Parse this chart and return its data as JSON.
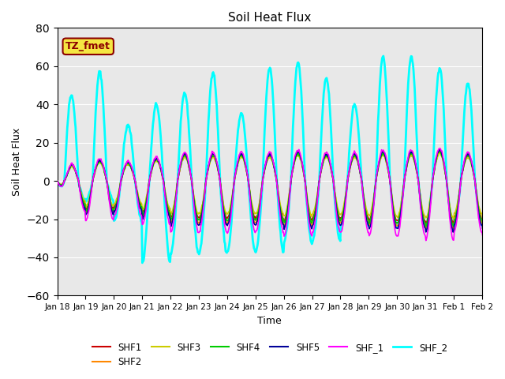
{
  "title": "Soil Heat Flux",
  "xlabel": "Time",
  "ylabel": "Soil Heat Flux",
  "ylim": [
    -60,
    80
  ],
  "bg_color": "#e8e8e8",
  "series": {
    "SHF1": {
      "color": "#cc0000",
      "lw": 1.2
    },
    "SHF2": {
      "color": "#ff8800",
      "lw": 1.2
    },
    "SHF3": {
      "color": "#cccc00",
      "lw": 1.2
    },
    "SHF4": {
      "color": "#00cc00",
      "lw": 1.2
    },
    "SHF5": {
      "color": "#000099",
      "lw": 1.2
    },
    "SHF_1": {
      "color": "#ff00ff",
      "lw": 1.2
    },
    "SHF_2": {
      "color": "#00ffff",
      "lw": 2.0
    }
  },
  "tz_label": "TZ_fmet",
  "tz_bg": "#f5e642",
  "tz_border": "#8b0000",
  "tick_labels": [
    "Jan 18",
    "Jan 19",
    "Jan 20",
    "Jan 21",
    "Jan 22",
    "Jan 23",
    "Jan 24",
    "Jan 25",
    "Jan 26",
    "Jan 27",
    "Jan 28",
    "Jan 29",
    "Jan 30",
    "Jan 31",
    "Feb 1",
    "Feb 2"
  ],
  "n_days": 16,
  "yticks": [
    -60,
    -40,
    -20,
    0,
    20,
    40,
    60,
    80
  ]
}
